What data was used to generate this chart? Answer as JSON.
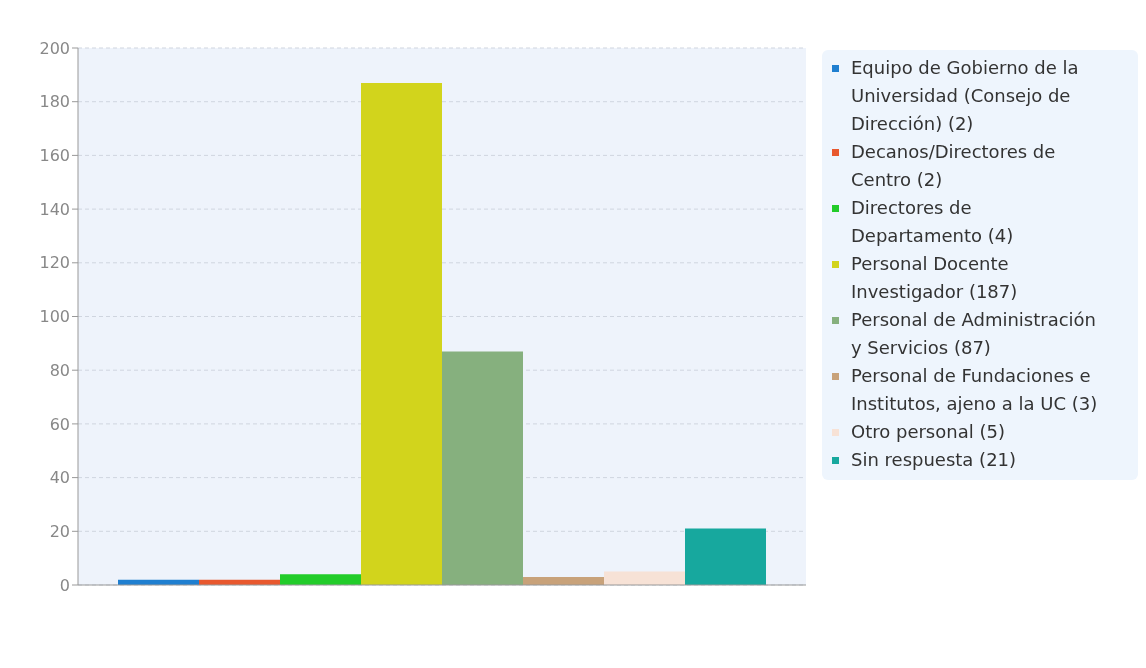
{
  "chart_data": {
    "type": "bar",
    "categories": [
      null
    ],
    "series": [
      {
        "name": "Equipo de Gobierno de la Universidad (Consejo de Dirección) (2)",
        "color": "#1f7fd0",
        "values": [
          2
        ]
      },
      {
        "name": "Decanos/Directores de Centro (2)",
        "color": "#e8582e",
        "values": [
          2
        ]
      },
      {
        "name": "Directores de Departamento (4)",
        "color": "#22cc2a",
        "values": [
          4
        ]
      },
      {
        "name": "Personal Docente Investigador (187)",
        "color": "#d2d41c",
        "values": [
          187
        ]
      },
      {
        "name": "Personal de Administración y Servicios (87)",
        "color": "#86b07e",
        "values": [
          87
        ]
      },
      {
        "name": "Personal de Fundaciones e Institutos, ajeno a la UC (3)",
        "color": "#c8a27a",
        "values": [
          3
        ]
      },
      {
        "name": "Otro personal (5)",
        "color": "#f7e2d6",
        "values": [
          5
        ]
      },
      {
        "name": "Sin respuesta (21)",
        "color": "#17a89e",
        "values": [
          21
        ]
      }
    ],
    "ylim": [
      0,
      200
    ],
    "yticks": [
      0,
      20,
      40,
      60,
      80,
      100,
      120,
      140,
      160,
      180,
      200
    ],
    "grid": "y",
    "legend": "top right"
  }
}
